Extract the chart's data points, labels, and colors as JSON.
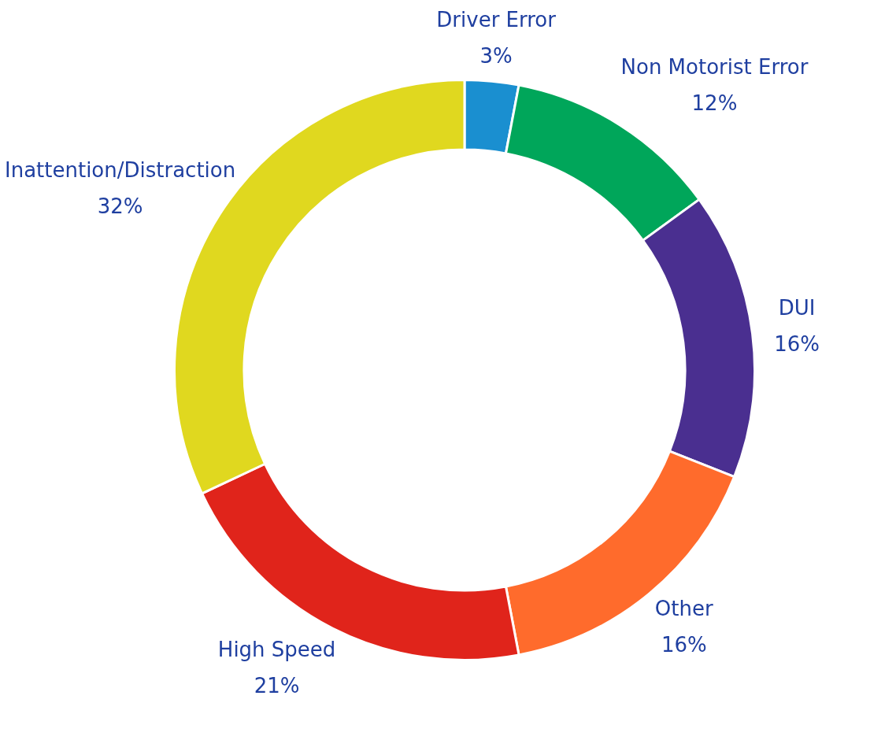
{
  "chart_data": {
    "type": "donut",
    "categories": [
      "Driver Error",
      "Non Motorist Error",
      "DUI",
      "Other",
      "High Speed",
      "Inattention/Distraction"
    ],
    "values": [
      3,
      12,
      16,
      16,
      21,
      32
    ],
    "value_labels": [
      "3%",
      "12%",
      "16%",
      "16%",
      "21%",
      "32%"
    ],
    "colors": [
      "#1a8fd0",
      "#00a65a",
      "#4a2f90",
      "#ff6b2c",
      "#e0241b",
      "#e0d81f"
    ],
    "legend": false
  }
}
